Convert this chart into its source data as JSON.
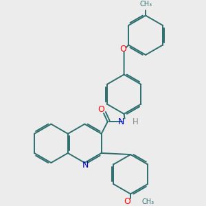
{
  "background_color": "#ececec",
  "bond_color": "#2d6e6e",
  "atom_colors": {
    "O": "#ff0000",
    "N": "#0000cc",
    "C": "#2d6e6e",
    "H": "#888888"
  },
  "font_size": 8.5,
  "line_width": 1.4
}
